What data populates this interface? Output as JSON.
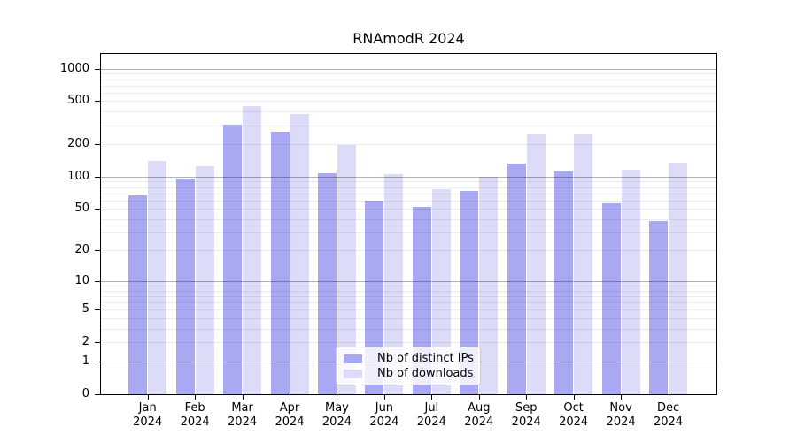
{
  "chart_data": {
    "type": "bar",
    "title": "RNAmodR 2024",
    "year": "2024",
    "months": [
      "Jan",
      "Feb",
      "Mar",
      "Apr",
      "May",
      "Jun",
      "Jul",
      "Aug",
      "Sep",
      "Oct",
      "Nov",
      "Dec"
    ],
    "categories": [
      "Jan 2024",
      "Feb 2024",
      "Mar 2024",
      "Apr 2024",
      "May 2024",
      "Jun 2024",
      "Jul 2024",
      "Aug 2024",
      "Sep 2024",
      "Oct 2024",
      "Nov 2024",
      "Dec 2024"
    ],
    "series": [
      {
        "name": "Nb of distinct IPs",
        "color": "#a9a9f3",
        "values": [
          67,
          95,
          305,
          261,
          107,
          59,
          52,
          73,
          132,
          112,
          56,
          38
        ]
      },
      {
        "name": "Nb of downloads",
        "color": "#dcdcf8",
        "values": [
          141,
          126,
          450,
          380,
          198,
          106,
          77,
          100,
          245,
          245,
          116,
          135
        ]
      }
    ],
    "y_axis": {
      "scale": "log1p",
      "tick_values": [
        0,
        1,
        2,
        5,
        10,
        20,
        50,
        100,
        200,
        500,
        1000
      ],
      "range": [
        0,
        1400
      ]
    },
    "x_axis": {
      "tick_labels_two_lines": true
    },
    "legend": {
      "location": "inside-bottom-center"
    },
    "grid": {
      "horizontal": true,
      "minor_gridlines": true
    },
    "colors": {
      "ips_bar": "#a9a9f3",
      "downloads_bar": "#dcdcf8",
      "major_grid": "#b3b3b3",
      "minor_grid": "#ececec",
      "axis": "#000000",
      "background": "#ffffff"
    }
  }
}
